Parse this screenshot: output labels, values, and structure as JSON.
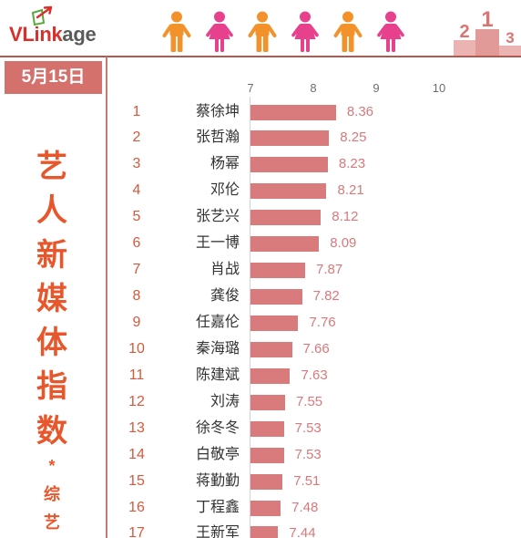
{
  "header": {
    "logo": {
      "icon": "vlinkage-logo-icon",
      "brand_main": "VLink",
      "brand_suffix": "age"
    },
    "figures": [
      "man-icon",
      "woman-icon",
      "man-icon",
      "woman-icon",
      "man-icon",
      "woman-icon"
    ],
    "podium": {
      "icon": "podium-icon",
      "places": [
        "2",
        "1",
        "3"
      ]
    },
    "colors": {
      "brand": "#d9302c",
      "brand_suffix": "#5a5a5a",
      "man": "#f3922b",
      "woman": "#e7408c",
      "podium": "#d97473"
    }
  },
  "sidebar": {
    "date": "5月15日",
    "colors": {
      "date_badge": "#d5716c",
      "divider": "#b3584f"
    }
  },
  "chart_data": {
    "type": "bar",
    "title": "艺人新媒体指数",
    "subtitle": "*综艺",
    "xticks": [
      7,
      8,
      9,
      10
    ],
    "xlim": [
      7,
      10
    ],
    "grid": false,
    "ranks": [
      1,
      2,
      3,
      4,
      5,
      6,
      7,
      8,
      9,
      10,
      11,
      12,
      13,
      14,
      15,
      16,
      17
    ],
    "categories": [
      "蔡徐坤",
      "张哲瀚",
      "杨幂",
      "邓伦",
      "张艺兴",
      "王一博",
      "肖战",
      "龚俊",
      "任嘉伦",
      "秦海璐",
      "陈建斌",
      "刘涛",
      "徐冬冬",
      "白敬亭",
      "蒋勤勤",
      "丁程鑫",
      "王新军"
    ],
    "values": [
      8.36,
      8.25,
      8.23,
      8.21,
      8.12,
      8.09,
      7.87,
      7.82,
      7.76,
      7.66,
      7.63,
      7.55,
      7.53,
      7.53,
      7.51,
      7.48,
      7.44
    ],
    "colors": {
      "bar": "#d97b7d",
      "value_label": "#d9797b",
      "rank": "#d6583c",
      "category_label": "#333333",
      "title": "#e8562b",
      "tick": "#6e6e6e"
    }
  }
}
